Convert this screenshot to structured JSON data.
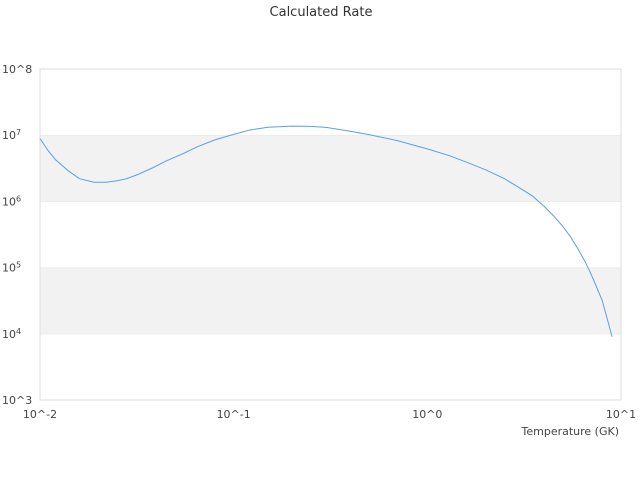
{
  "chart_data": {
    "type": "line",
    "title": "Calculated Rate",
    "xlabel": "Temperature (GK)",
    "ylabel": "",
    "x_scale": "log",
    "y_scale": "log",
    "xlim": [
      0.01,
      10
    ],
    "ylim": [
      1000,
      100000000
    ],
    "x_ticks": [
      "10^-2",
      "10^-1",
      "10^0",
      "10^1"
    ],
    "y_ticks": [
      "10^3",
      "10^4",
      "10^5",
      "10^6",
      "10^7",
      "10^8"
    ],
    "grid": "alternating horizontal bands",
    "legend": "none",
    "series": [
      {
        "color": "#5aa0e6",
        "x": [
          0.01,
          0.011,
          0.012,
          0.014,
          0.016,
          0.019,
          0.022,
          0.025,
          0.028,
          0.032,
          0.038,
          0.045,
          0.055,
          0.065,
          0.08,
          0.1,
          0.12,
          0.15,
          0.2,
          0.25,
          0.3,
          0.4,
          0.5,
          0.7,
          1.0,
          1.3,
          1.6,
          2.0,
          2.5,
          3.0,
          3.5,
          4.0,
          4.5,
          5.0,
          5.5,
          6.0,
          6.5,
          7.0,
          7.5,
          8.0,
          9.0
        ],
        "y": [
          8900000,
          5900000,
          4300000,
          2900000,
          2200000,
          1950000,
          1950000,
          2050000,
          2200000,
          2550000,
          3200000,
          4100000,
          5300000,
          6700000,
          8500000,
          10300000,
          11900000,
          13200000,
          13700000,
          13600000,
          13100000,
          11500000,
          10200000,
          8300000,
          6200000,
          4900000,
          3900000,
          3000000,
          2200000,
          1600000,
          1200000,
          850000,
          600000,
          420000,
          290000,
          190000,
          125000,
          80000,
          50000,
          32000,
          9000
        ]
      }
    ]
  }
}
